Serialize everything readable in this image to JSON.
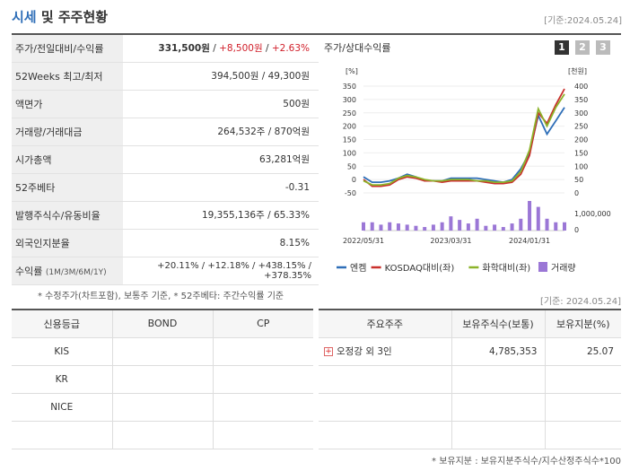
{
  "header": {
    "title_accent": "시세",
    "title_rest": " 및 주주현황",
    "ref_date": "[기준:2024.05.24]"
  },
  "info": {
    "price_row": {
      "label": "주가/전일대비/수익률",
      "price": "331,500원",
      "sep1": " / ",
      "change": "+8,500원",
      "sep2": " / ",
      "rate": "+2.63%"
    },
    "week52": {
      "label": "52Weeks 최고/최저",
      "value": "394,500원 / 49,300원"
    },
    "par": {
      "label": "액면가",
      "value": "500원"
    },
    "volume": {
      "label": "거래량/거래대금",
      "value": "264,532주 / 870억원"
    },
    "mcap": {
      "label": "시가총액",
      "value": "63,281억원"
    },
    "beta": {
      "label": "52주베타",
      "value": "-0.31"
    },
    "shares": {
      "label": "발행주식수/유동비율",
      "value": "19,355,136주 / 65.33%"
    },
    "foreign": {
      "label": "외국인지분율",
      "value": "8.15%"
    },
    "returns": {
      "label": "수익률",
      "sub": "(1M/3M/6M/1Y)",
      "value": "+20.11% / +12.18% / +438.15% / +378.35%"
    }
  },
  "chart_panel": {
    "title": "주가/상대수익률",
    "tabs": [
      "1",
      "2",
      "3"
    ]
  },
  "chart_data": {
    "type": "line",
    "left_axis_label": "[%]",
    "right_axis_label": "[천원]",
    "left_ticks": [
      "350",
      "300",
      "250",
      "200",
      "150",
      "100",
      "50",
      "0",
      "-50"
    ],
    "right_ticks": [
      "400",
      "350",
      "300",
      "250",
      "200",
      "150",
      "100",
      "50",
      "0"
    ],
    "volume_tick": "1,000,000",
    "volume_zero": "0",
    "ylim_left": [
      -50,
      350
    ],
    "ylim_right": [
      0,
      400
    ],
    "x_labels": [
      "2022/05/31",
      "2023/03/31",
      "2024/01/31"
    ],
    "x_label_index": [
      0,
      10,
      19
    ],
    "series": [
      {
        "name": "엔켐",
        "color": "#2f6fb8",
        "axis": "right",
        "values": [
          60,
          40,
          40,
          45,
          55,
          70,
          60,
          45,
          45,
          45,
          55,
          55,
          55,
          55,
          50,
          45,
          40,
          50,
          90,
          150,
          290,
          220,
          270,
          320
        ]
      },
      {
        "name": "KOSDAQ대비(좌)",
        "color": "#c9302c",
        "axis": "left",
        "values": [
          0,
          -25,
          -25,
          -20,
          0,
          10,
          5,
          -5,
          -5,
          -10,
          -5,
          -5,
          -5,
          -5,
          -10,
          -15,
          -15,
          -10,
          20,
          90,
          250,
          210,
          280,
          340
        ]
      },
      {
        "name": "화학대비(좌)",
        "color": "#8cb32a",
        "axis": "left",
        "values": [
          -5,
          -20,
          -20,
          -15,
          5,
          15,
          10,
          0,
          -5,
          -5,
          0,
          0,
          0,
          -5,
          -5,
          -10,
          -10,
          -5,
          30,
          110,
          265,
          200,
          270,
          320
        ]
      }
    ],
    "volume": {
      "name": "거래량",
      "color": "#9b77d6",
      "values": [
        0.28,
        0.28,
        0.2,
        0.28,
        0.24,
        0.2,
        0.16,
        0.12,
        0.2,
        0.28,
        0.48,
        0.36,
        0.24,
        0.4,
        0.16,
        0.2,
        0.12,
        0.24,
        0.4,
        1.0,
        0.8,
        0.4,
        0.28,
        0.28
      ]
    }
  },
  "notes": {
    "left": "* 수정주가(차트포함), 보통주 기준, * 52주베타: 주간수익률 기준",
    "right_date": "[기준: 2024.05.24]",
    "bottom": "* 보유지분 : 보유지분주식수/지수산정주식수*100"
  },
  "credit_table": {
    "headers": [
      "신용등급",
      "BOND",
      "CP"
    ],
    "rows": [
      [
        "KIS",
        "",
        ""
      ],
      [
        "KR",
        "",
        ""
      ],
      [
        "NICE",
        "",
        ""
      ],
      [
        "",
        "",
        ""
      ]
    ]
  },
  "holders_table": {
    "headers": [
      "주요주주",
      "보유주식수(보통)",
      "보유지분(%)"
    ],
    "rows": [
      {
        "name": "오정강 외 3인",
        "shares": "4,785,353",
        "pct": "25.07"
      },
      {
        "name": "",
        "shares": "",
        "pct": ""
      },
      {
        "name": "",
        "shares": "",
        "pct": ""
      },
      {
        "name": "",
        "shares": "",
        "pct": ""
      }
    ]
  }
}
